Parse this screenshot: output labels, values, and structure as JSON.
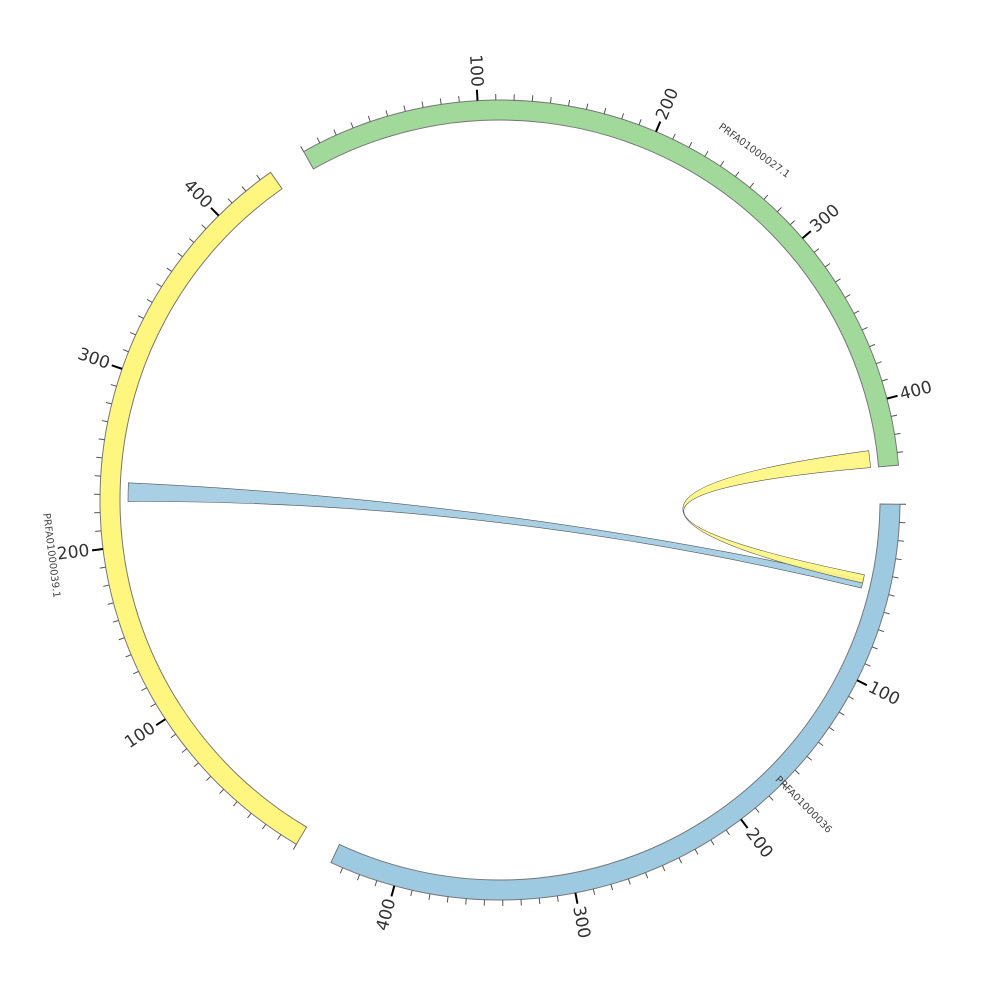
{
  "chart_data": {
    "type": "chord",
    "segments": [
      {
        "name": "PRFA01000036",
        "length": 437,
        "color": "#9ecae1",
        "tick_labels": [
          "100",
          "200",
          "300",
          "400"
        ]
      },
      {
        "name": "PRFA01000039.1",
        "length": 437,
        "color": "#fff680",
        "tick_labels": [
          "100",
          "200",
          "300",
          "400"
        ]
      },
      {
        "name": "PRFA01000027.1",
        "length": 437,
        "color": "#a1d99b",
        "tick_labels": [
          "100",
          "200",
          "300",
          "400"
        ]
      }
    ],
    "links": [
      {
        "source": "PRFA01000036",
        "source_range": [
          45,
          50
        ],
        "target": "PRFA01000039.1",
        "target_range": [
          226,
          237
        ],
        "color": "#9ecae1"
      },
      {
        "source": "PRFA01000036",
        "source_range": [
          42,
          47
        ],
        "target": "PRFA01000027.1",
        "target_range": [
          427,
          437
        ],
        "color": "#fff680"
      }
    ]
  }
}
